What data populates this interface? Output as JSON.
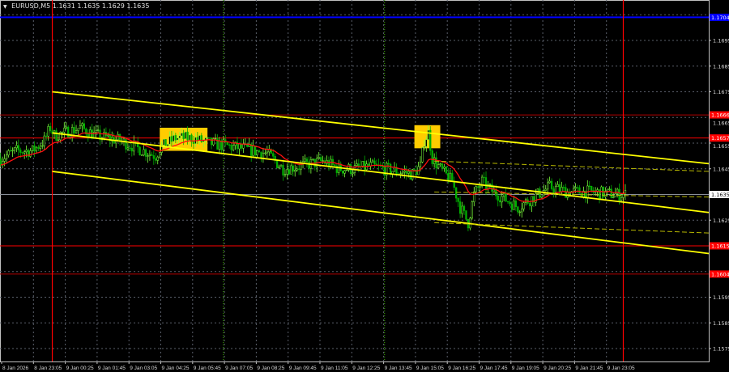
{
  "header": {
    "symbol": "EURUSD,M5",
    "ohlc": "1.1631 1.1635 1.1629 1.1635",
    "menu_icon": "triangle-down-icon"
  },
  "chart_data": {
    "type": "candlestick",
    "title": "EURUSD,M5",
    "ylim": [
      1.1571,
      1.171
    ],
    "grid": true,
    "price_ticks": [
      "1.1695",
      "1.1685",
      "1.1675",
      "1.1665",
      "1.1655",
      "1.1645",
      "1.1625",
      "1.1595",
      "1.1585",
      "1.1575"
    ],
    "time_ticks": [
      "8 Jan 2026",
      "8 Jan 23:05",
      "9 Jan 00:25",
      "9 Jan 01:45",
      "9 Jan 03:05",
      "9 Jan 04:25",
      "9 Jan 05:45",
      "9 Jan 07:05",
      "9 Jan 08:25",
      "9 Jan 09:45",
      "9 Jan 11:05",
      "9 Jan 12:25",
      "9 Jan 13:45",
      "9 Jan 15:05",
      "9 Jan 16:25",
      "9 Jan 17:45",
      "9 Jan 19:05",
      "9 Jan 20:25",
      "9 Jan 21:45",
      "9 Jan 23:05"
    ],
    "price_path": [
      [
        "8 Jan 21:45",
        1.1649
      ],
      [
        "8 Jan 22:25",
        1.1652
      ],
      [
        "8 Jan 23:05",
        1.1652
      ],
      [
        "8 Jan 23:35",
        1.1656
      ],
      [
        "8 Jan 23:50",
        1.1661
      ],
      [
        "9 Jan 00:00",
        1.1658
      ],
      [
        "9 Jan 00:25",
        1.1659
      ],
      [
        "9 Jan 01:05",
        1.1661
      ],
      [
        "9 Jan 01:45",
        1.1658
      ],
      [
        "9 Jan 02:45",
        1.1656
      ],
      [
        "9 Jan 03:45",
        1.1652
      ],
      [
        "9 Jan 04:15",
        1.165
      ],
      [
        "9 Jan 04:25",
        1.1653
      ],
      [
        "9 Jan 05:05",
        1.1657
      ],
      [
        "9 Jan 05:45",
        1.1657
      ],
      [
        "9 Jan 06:30",
        1.1655
      ],
      [
        "9 Jan 07:10",
        1.1654
      ],
      [
        "9 Jan 07:50",
        1.1653
      ],
      [
        "9 Jan 08:55",
        1.1651
      ],
      [
        "9 Jan 09:35",
        1.1645
      ],
      [
        "9 Jan 10:15",
        1.1646
      ],
      [
        "9 Jan 11:15",
        1.1648
      ],
      [
        "9 Jan 11:55",
        1.1645
      ],
      [
        "9 Jan 12:35",
        1.1645
      ],
      [
        "9 Jan 13:15",
        1.1646
      ],
      [
        "9 Jan 14:20",
        1.1644
      ],
      [
        "9 Jan 15:00",
        1.1643
      ],
      [
        "9 Jan 15:20",
        1.1646
      ],
      [
        "9 Jan 15:30",
        1.1656
      ],
      [
        "9 Jan 15:40",
        1.1659
      ],
      [
        "9 Jan 15:50",
        1.1649
      ],
      [
        "9 Jan 16:10",
        1.1645
      ],
      [
        "9 Jan 16:40",
        1.164
      ],
      [
        "9 Jan 17:00",
        1.163
      ],
      [
        "9 Jan 17:20",
        1.1624
      ],
      [
        "9 Jan 17:35",
        1.1635
      ],
      [
        "9 Jan 17:55",
        1.164
      ],
      [
        "9 Jan 18:15",
        1.1637
      ],
      [
        "9 Jan 18:45",
        1.1634
      ],
      [
        "9 Jan 19:25",
        1.163
      ],
      [
        "9 Jan 20:05",
        1.1634
      ],
      [
        "9 Jan 20:45",
        1.1638
      ],
      [
        "9 Jan 21:30",
        1.1636
      ],
      [
        "9 Jan 22:30",
        1.1636
      ],
      [
        "9 Jan 23:30",
        1.1635
      ],
      [
        "9 Jan 23:55",
        1.1635
      ]
    ],
    "horizontal_levels": [
      {
        "price": 1.1704,
        "label": "1.1704",
        "color": "#0000ff"
      },
      {
        "price": 1.1666,
        "label": "1.1666",
        "color": "#b00000"
      },
      {
        "price": 1.1657,
        "label": "1.1657",
        "color": "#ff0000"
      },
      {
        "price": 1.1615,
        "label": "1.1615",
        "color": "#ff0000"
      },
      {
        "price": 1.1604,
        "label": "1.1604",
        "color": "#b00000"
      }
    ],
    "bid_line": {
      "price": 1.1635,
      "label": "1.1635",
      "color": "#8a8f99"
    },
    "vertical_lines": [
      {
        "time": "8 Jan 23:55",
        "color": "#ff0000",
        "style": "solid"
      },
      {
        "time": "9 Jan 23:50",
        "color": "#ff0000",
        "style": "solid"
      },
      {
        "time": "9 Jan 07:05",
        "color": "#3cb000",
        "style": "dotted"
      },
      {
        "time": "9 Jan 13:50",
        "color": "#3cb000",
        "style": "dotted"
      }
    ],
    "trend_channel": [
      {
        "from": [
          "8 Jan 23:55",
          1.1675
        ],
        "to": [
          "10 Jan 03:25",
          1.1647
        ]
      },
      {
        "from": [
          "8 Jan 23:55",
          1.1659
        ],
        "to": [
          "10 Jan 03:25",
          1.1628
        ]
      },
      {
        "from": [
          "8 Jan 23:55",
          1.1644
        ],
        "to": [
          "10 Jan 03:25",
          1.1612
        ]
      }
    ],
    "dashed_channel": [
      {
        "from": [
          "9 Jan 15:55",
          1.1648
        ],
        "to": [
          "10 Jan 03:25",
          1.1644
        ]
      },
      {
        "from": [
          "9 Jan 15:55",
          1.1636
        ],
        "to": [
          "10 Jan 03:25",
          1.1634
        ]
      },
      {
        "from": [
          "9 Jan 15:55",
          1.1624
        ],
        "to": [
          "10 Jan 03:25",
          1.162
        ]
      }
    ],
    "signal_boxes": [
      {
        "from": [
          "9 Jan 04:25",
          1.1661
        ],
        "to": [
          "9 Jan 06:25",
          1.1652
        ]
      },
      {
        "from": [
          "9 Jan 15:05",
          1.1662
        ],
        "to": [
          "9 Jan 16:10",
          1.1653
        ]
      }
    ],
    "colors": {
      "candle_up": "#7cff3c",
      "candle_down": "#00b000",
      "ma": "#ff1010",
      "channel": "#ffff00",
      "box": "#ffcc00",
      "grid": "#5a5f6a"
    }
  }
}
